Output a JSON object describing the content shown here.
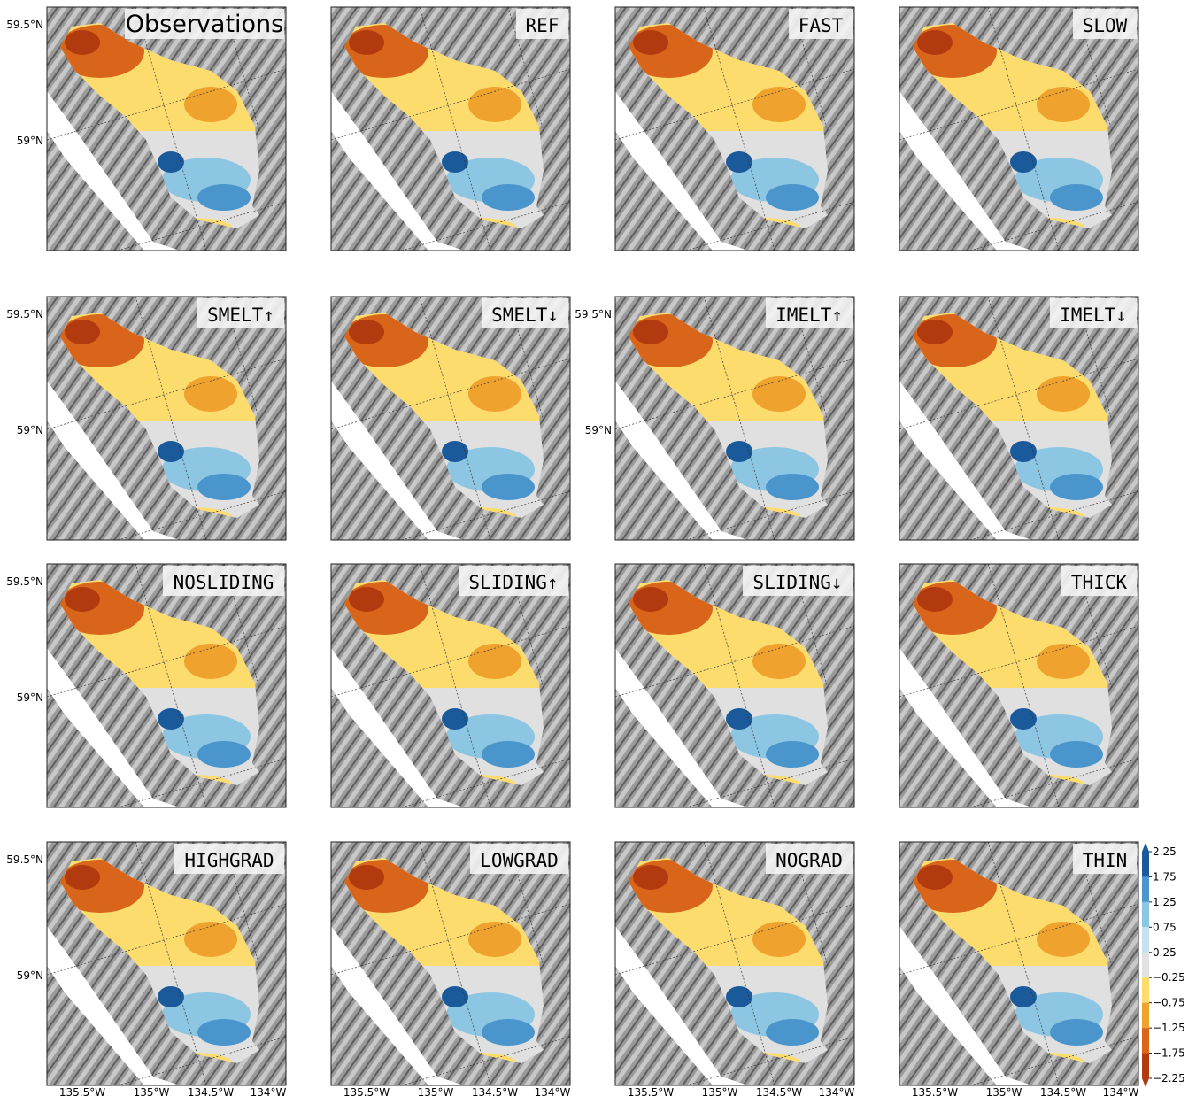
{
  "panels": [
    {
      "title": "Observations"
    },
    {
      "title": "REF"
    },
    {
      "title": "FAST"
    },
    {
      "title": "SLOW"
    },
    {
      "title": "SMELT↑"
    },
    {
      "title": "SMELT↓"
    },
    {
      "title": "IMELT↑"
    },
    {
      "title": "IMELT↓"
    },
    {
      "title": "NOSLIDING"
    },
    {
      "title": "SLIDING↑"
    },
    {
      "title": "SLIDING↓"
    },
    {
      "title": "THICK"
    },
    {
      "title": "HIGHGRAD"
    },
    {
      "title": "LOWGRAD"
    },
    {
      "title": "NOGRAD"
    },
    {
      "title": "THIN"
    }
  ],
  "lat_labels": [
    "59.5°N",
    "59°N"
  ],
  "lon_labels": [
    "135.5°W",
    "135°W",
    "134.5°W",
    "134°W"
  ],
  "colorbar": {
    "lim": [
      -2.25,
      2.25
    ],
    "ticks": [
      {
        "value": 2.25,
        "label": "2.25"
      },
      {
        "value": 1.75,
        "label": "1.75"
      },
      {
        "value": 1.25,
        "label": "1.25"
      },
      {
        "value": 0.75,
        "label": "0.75"
      },
      {
        "value": 0.25,
        "label": "0.25"
      },
      {
        "value": -0.25,
        "label": "−0.25"
      },
      {
        "value": -0.75,
        "label": "−0.75"
      },
      {
        "value": -1.25,
        "label": "−1.25"
      },
      {
        "value": -1.75,
        "label": "−1.75"
      },
      {
        "value": -2.25,
        "label": "−2.25"
      }
    ],
    "colors": [
      "#1a5a9a",
      "#4a95cc",
      "#8cc6e2",
      "#c4e2ef",
      "#e2e2e2",
      "#fddc6e",
      "#f0a22e",
      "#d9651a",
      "#b23a0f"
    ]
  }
}
